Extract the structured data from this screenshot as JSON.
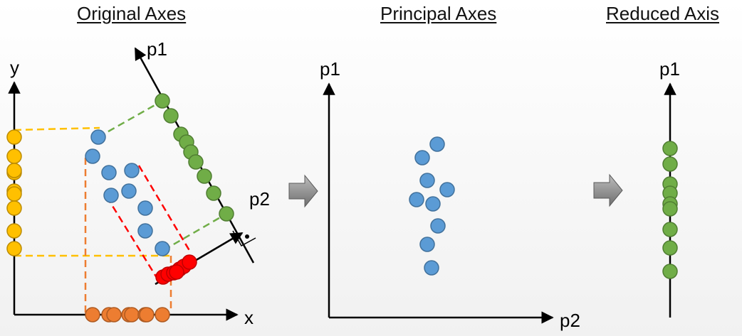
{
  "titles": {
    "original": "Original Axes",
    "principal": "Principal Axes",
    "reduced": "Reduced Axis"
  },
  "axis_labels": {
    "x": "x",
    "y": "y",
    "p1_left": "p1",
    "p2_left": "p2",
    "p1_mid": "p1",
    "p2_mid": "p2",
    "p1_right": "p1"
  },
  "colors": {
    "blue": "#5b9bd5",
    "blue_stroke": "#41719c",
    "green": "#70ad47",
    "green_stroke": "#507e32",
    "orange": "#ed7d31",
    "orange_stroke": "#ae5a21",
    "yellow": "#ffc000",
    "yellow_stroke": "#bc8c00",
    "red": "#ff0000",
    "red_stroke": "#c00000",
    "arrow_fill": "#8c8c8c"
  },
  "icons": [
    "transition-arrow-icon",
    "right-angle-marker-icon"
  ]
}
